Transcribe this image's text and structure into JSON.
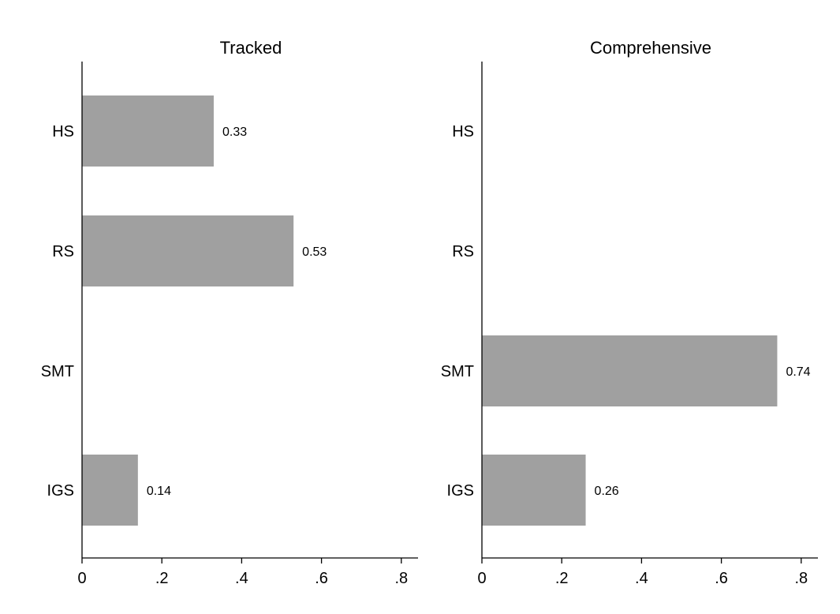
{
  "chart_data": [
    {
      "type": "bar",
      "orientation": "horizontal",
      "title": "Tracked",
      "categories": [
        "HS",
        "RS",
        "SMT",
        "IGS"
      ],
      "values": [
        0.33,
        0.53,
        null,
        0.14
      ],
      "value_labels": [
        "0.33",
        "0.53",
        "",
        "0.14"
      ],
      "xlim": [
        0,
        0.84
      ],
      "x_ticks": [
        0,
        0.2,
        0.4,
        0.6,
        0.8
      ],
      "x_tick_labels": [
        "0",
        ".2",
        ".4",
        ".6",
        ".8"
      ],
      "bar_color": "#a0a0a0",
      "grid": false
    },
    {
      "type": "bar",
      "orientation": "horizontal",
      "title": "Comprehensive",
      "categories": [
        "HS",
        "RS",
        "SMT",
        "IGS"
      ],
      "values": [
        null,
        null,
        0.74,
        0.26
      ],
      "value_labels": [
        "",
        "",
        "0.74",
        "0.26"
      ],
      "xlim": [
        0,
        0.84
      ],
      "x_ticks": [
        0,
        0.2,
        0.4,
        0.6,
        0.8
      ],
      "x_tick_labels": [
        "0",
        ".2",
        ".4",
        ".6",
        ".8"
      ],
      "bar_color": "#a0a0a0",
      "grid": false
    }
  ]
}
